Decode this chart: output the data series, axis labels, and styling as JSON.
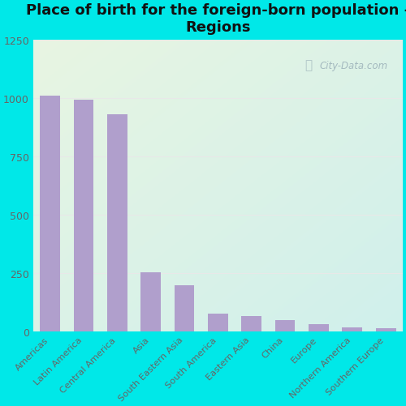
{
  "title": "Place of birth for the foreign-born population -\nRegions",
  "categories": [
    "Americas",
    "Latin America",
    "Central America",
    "Asia",
    "South Eastern Asia",
    "South America",
    "Eastern Asia",
    "China",
    "Europe",
    "Northern America",
    "Southern Europe"
  ],
  "values": [
    1010,
    993,
    930,
    253,
    198,
    75,
    65,
    47,
    30,
    17,
    15
  ],
  "bar_color": "#b09fcc",
  "bg_color_outer": "#00e8e8",
  "bg_gradient_top_left": "#e8f5e2",
  "bg_gradient_bottom_right": "#d0f0ec",
  "ylim": [
    0,
    1250
  ],
  "yticks": [
    0,
    250,
    500,
    750,
    1000,
    1250
  ],
  "grid_color": "#e8e8e8",
  "title_fontsize": 13,
  "tick_label_color": "#666666",
  "watermark": "City-Data.com"
}
